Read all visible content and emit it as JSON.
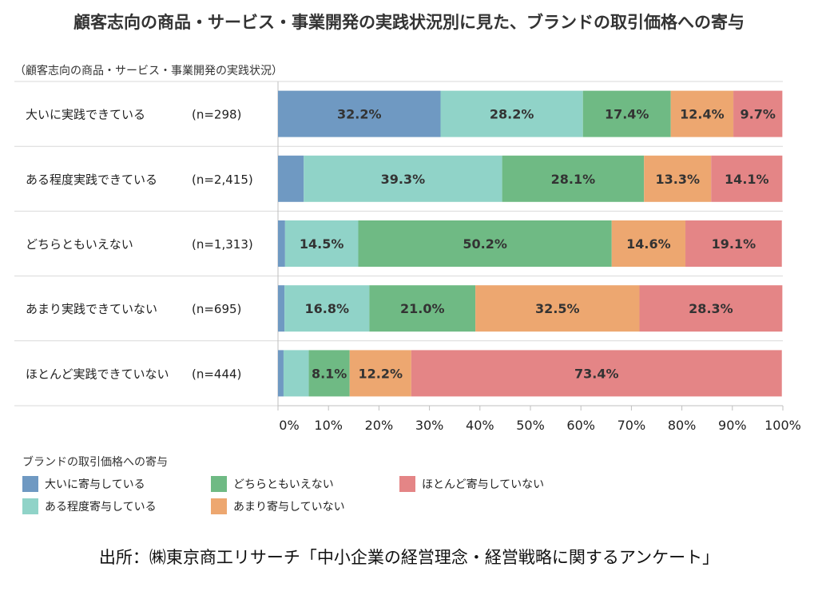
{
  "chart_data": {
    "type": "bar",
    "orientation": "horizontal",
    "stacked": true,
    "title": "顧客志向の商品・サービス・事業開発の実践状況別に見た、ブランドの取引価格への寄与",
    "subtitle": "（顧客志向の商品・サービス・事業開発の実践状況）",
    "categories": [
      "大いに実践できている",
      "ある程度実践できている",
      "どちらともいえない",
      "あまり実践できていない",
      "ほとんど実践できていない"
    ],
    "sample_sizes": [
      "(n=298)",
      "(n=2,415)",
      "(n=1,313)",
      "(n=695)",
      "(n=444)"
    ],
    "series": [
      {
        "name": "大いに寄与している",
        "color": "#6f99c2",
        "values": [
          32.2,
          5.1,
          1.4,
          1.3,
          1.1
        ]
      },
      {
        "name": "ある程度寄与している",
        "color": "#90d3c8",
        "values": [
          28.2,
          39.3,
          14.5,
          16.8,
          5.0
        ]
      },
      {
        "name": "どちらともいえない",
        "color": "#6fba84",
        "values": [
          17.4,
          28.1,
          50.2,
          21.0,
          8.1
        ]
      },
      {
        "name": "あまり寄与していない",
        "color": "#eda770",
        "values": [
          12.4,
          13.3,
          14.6,
          32.5,
          12.2
        ]
      },
      {
        "name": "ほとんど寄与していない",
        "color": "#e48586",
        "values": [
          9.7,
          14.1,
          19.1,
          28.3,
          73.4
        ]
      }
    ],
    "data_labels": [
      [
        "32.2%",
        "28.2%",
        "17.4%",
        "12.4%",
        "9.7%"
      ],
      [
        "",
        "39.3%",
        "28.1%",
        "13.3%",
        "14.1%"
      ],
      [
        "",
        "14.5%",
        "50.2%",
        "14.6%",
        "19.1%"
      ],
      [
        "",
        "16.8%",
        "21.0%",
        "32.5%",
        "28.3%"
      ],
      [
        "",
        "",
        "8.1%",
        "12.2%",
        "73.4%"
      ]
    ],
    "x_ticks": [
      "0%",
      "10%",
      "20%",
      "30%",
      "40%",
      "50%",
      "60%",
      "70%",
      "80%",
      "90%",
      "100%"
    ],
    "xlim": [
      0,
      100
    ],
    "legend_title": "ブランドの取引価格への寄与",
    "legend_position": "bottom"
  },
  "source": "出所：㈱東京商工リサーチ「中小企業の経営理念・経営戦略に関するアンケート」"
}
